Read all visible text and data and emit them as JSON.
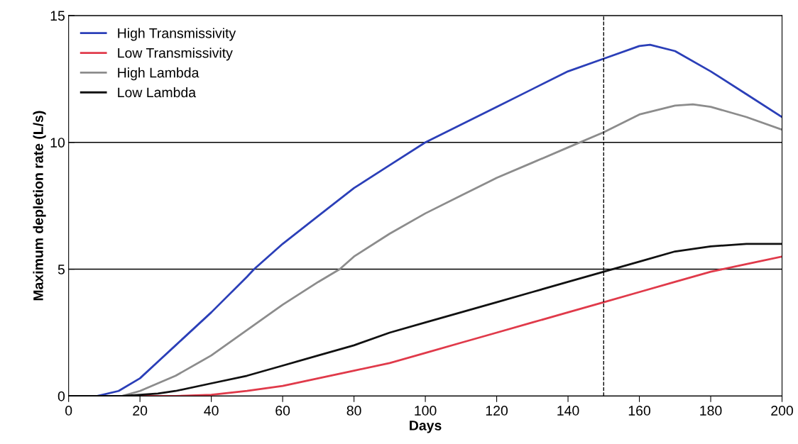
{
  "chart_data": {
    "type": "line",
    "xlabel": "Days",
    "ylabel": "Maximum depletion rate (L/s)",
    "xlim": [
      0,
      200
    ],
    "xticks": [
      0,
      20,
      40,
      60,
      80,
      100,
      120,
      140,
      160,
      180,
      200
    ],
    "ylim": [
      0,
      15
    ],
    "yticks": [
      0,
      5,
      10,
      15
    ],
    "grid": "y",
    "legend": "top left",
    "marker": "none",
    "line_style": "solid",
    "ref_lines": [
      {
        "axis": "x",
        "value": 150,
        "color": "#000000",
        "line_style": "dashed"
      }
    ],
    "series": [
      {
        "name": "High Transmissivity",
        "color": "#2b3fb8",
        "x": [
          0,
          8,
          14,
          20,
          30,
          40,
          50,
          52,
          60,
          70,
          80,
          90,
          100,
          110,
          120,
          130,
          140,
          150,
          160,
          163,
          170,
          180,
          190,
          200
        ],
        "values": [
          0,
          0,
          0.2,
          0.7,
          2.0,
          3.3,
          4.7,
          5.0,
          6.0,
          7.1,
          8.2,
          9.1,
          10.0,
          10.7,
          11.4,
          12.1,
          12.8,
          13.3,
          13.8,
          13.85,
          13.6,
          12.8,
          11.9,
          11.0
        ]
      },
      {
        "name": "Low Transmissivity",
        "color": "#e03a4a",
        "x": [
          0,
          30,
          40,
          50,
          60,
          70,
          80,
          90,
          100,
          110,
          120,
          130,
          140,
          150,
          160,
          170,
          180,
          190,
          200
        ],
        "values": [
          0,
          0,
          0.05,
          0.2,
          0.4,
          0.7,
          1.0,
          1.3,
          1.7,
          2.1,
          2.5,
          2.9,
          3.3,
          3.7,
          4.1,
          4.5,
          4.9,
          5.2,
          5.5
        ]
      },
      {
        "name": "High Lambda",
        "color": "#8c8c8c",
        "x": [
          0,
          15,
          20,
          30,
          40,
          50,
          60,
          70,
          76,
          80,
          90,
          100,
          110,
          120,
          130,
          140,
          150,
          160,
          170,
          175,
          180,
          190,
          200
        ],
        "values": [
          0,
          0,
          0.2,
          0.8,
          1.6,
          2.6,
          3.6,
          4.5,
          5.0,
          5.5,
          6.4,
          7.2,
          7.9,
          8.6,
          9.2,
          9.8,
          10.4,
          11.1,
          11.45,
          11.5,
          11.4,
          11.0,
          10.5
        ]
      },
      {
        "name": "Low Lambda",
        "color": "#111111",
        "x": [
          0,
          15,
          20,
          25,
          30,
          40,
          50,
          60,
          70,
          80,
          90,
          100,
          110,
          120,
          130,
          140,
          150,
          160,
          170,
          180,
          190,
          200
        ],
        "values": [
          0,
          0,
          0.05,
          0.1,
          0.2,
          0.5,
          0.8,
          1.2,
          1.6,
          2.0,
          2.5,
          2.9,
          3.3,
          3.7,
          4.1,
          4.5,
          4.9,
          5.3,
          5.7,
          5.9,
          6.0,
          6.0
        ]
      }
    ]
  }
}
